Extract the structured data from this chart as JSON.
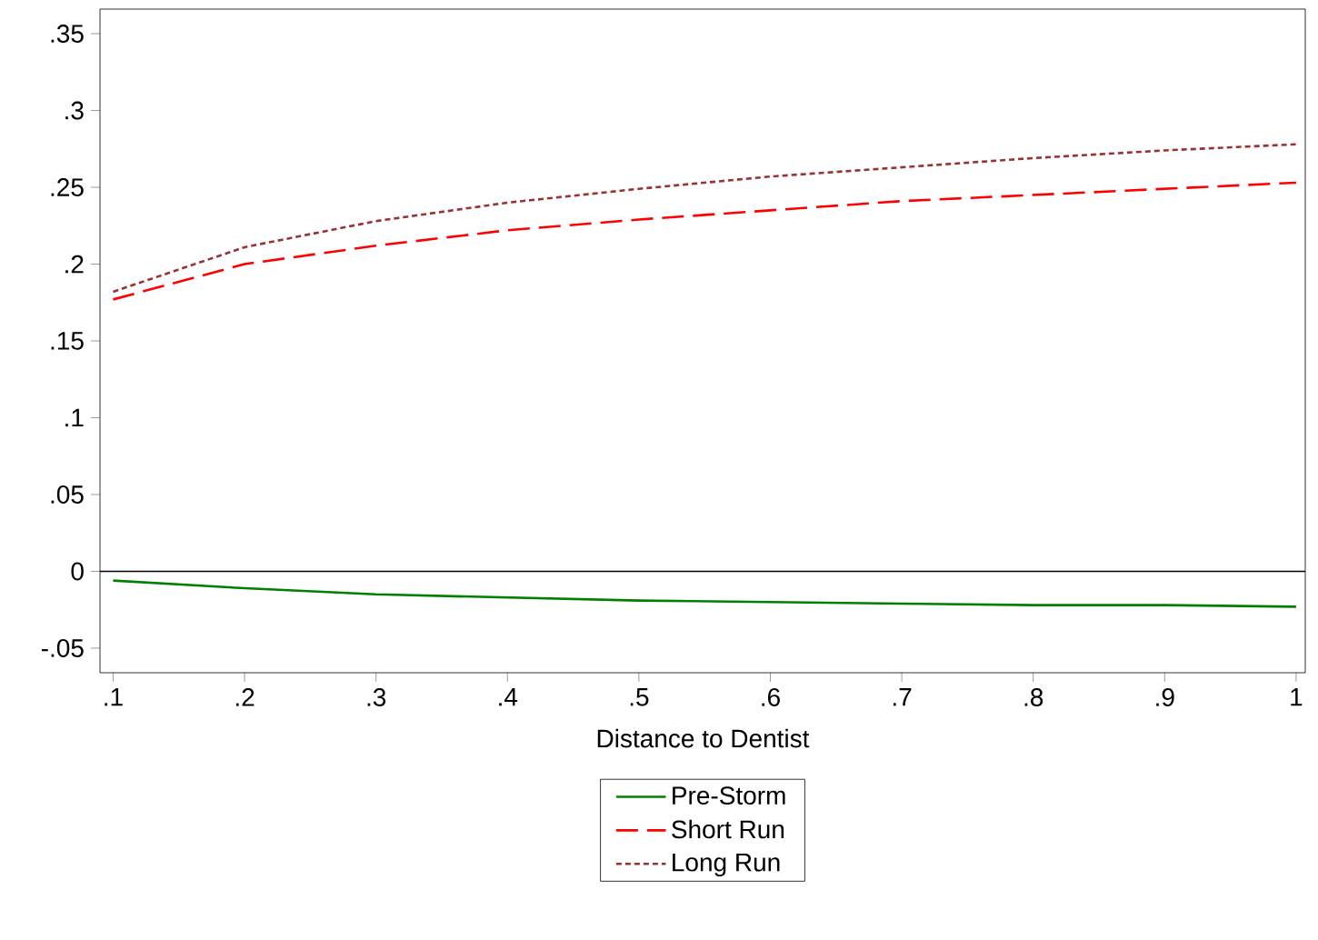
{
  "chart_data": {
    "type": "line",
    "xlabel": "Distance to Dentist",
    "x": [
      0.1,
      0.2,
      0.3,
      0.4,
      0.5,
      0.6,
      0.7,
      0.8,
      0.9,
      1.0
    ],
    "series": [
      {
        "name": "Pre-Storm",
        "color": "#008000",
        "line_style": "solid",
        "values": [
          -0.006,
          -0.011,
          -0.015,
          -0.017,
          -0.019,
          -0.02,
          -0.021,
          -0.022,
          -0.022,
          -0.023
        ]
      },
      {
        "name": "Short Run",
        "color": "#ff0000",
        "line_style": "dashed",
        "values": [
          0.177,
          0.2,
          0.212,
          0.222,
          0.229,
          0.235,
          0.241,
          0.245,
          0.249,
          0.253
        ]
      },
      {
        "name": "Long Run",
        "color": "#993333",
        "line_style": "dotted",
        "values": [
          0.182,
          0.211,
          0.228,
          0.24,
          0.249,
          0.257,
          0.263,
          0.269,
          0.274,
          0.278
        ]
      }
    ],
    "xlim": [
      0.09,
      1.007
    ],
    "ylim": [
      -0.066,
      0.366
    ],
    "xticks": [
      {
        "value": 0.1,
        "label": ".1"
      },
      {
        "value": 0.2,
        "label": ".2"
      },
      {
        "value": 0.3,
        "label": ".3"
      },
      {
        "value": 0.4,
        "label": ".4"
      },
      {
        "value": 0.5,
        "label": ".5"
      },
      {
        "value": 0.6,
        "label": ".6"
      },
      {
        "value": 0.7,
        "label": ".7"
      },
      {
        "value": 0.8,
        "label": ".8"
      },
      {
        "value": 0.9,
        "label": ".9"
      },
      1
    ],
    "yticks": [
      {
        "value": -0.05,
        "label": "-.05"
      },
      0,
      {
        "value": 0.05,
        "label": ".05"
      },
      {
        "value": 0.1,
        "label": ".1"
      },
      {
        "value": 0.15,
        "label": ".15"
      },
      {
        "value": 0.2,
        "label": ".2"
      },
      {
        "value": 0.25,
        "label": ".25"
      },
      {
        "value": 0.3,
        "label": ".3"
      },
      {
        "value": 0.35,
        "label": ".35"
      }
    ],
    "ref_lines": [
      {
        "axis": "y",
        "value": 0,
        "color": "#000000"
      }
    ],
    "grid": false,
    "legend": "bottom",
    "marker": "none"
  }
}
